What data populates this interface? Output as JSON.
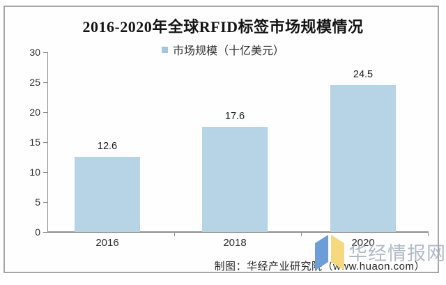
{
  "title": "2016-2020年全球RFID标签市场规模情况",
  "legend": {
    "label": "市场规模（十亿美元）",
    "marker_color": "#a3c7e1"
  },
  "footer_credit": "制图：华经产业研究院（www.huaon.com）",
  "watermark": {
    "text": "华经情报网",
    "logo_left_color": "#6d9dd6",
    "logo_right_color": "#f6d87d"
  },
  "colors": {
    "bar": "#b7d3e6",
    "axis": "#8c8c8c",
    "frame_border": "#a6a6a6"
  },
  "chart_data": {
    "type": "bar",
    "title": "2016-2020年全球RFID标签市场规模情况",
    "series_name": "市场规模（十亿美元）",
    "categories": [
      "2016",
      "2018",
      "2020"
    ],
    "values": [
      12.6,
      17.6,
      24.5
    ],
    "value_labels": [
      "12.6",
      "17.6",
      "24.5"
    ],
    "xlabel": "",
    "ylabel": "",
    "ylim": [
      0,
      30
    ],
    "ytick_step": 5,
    "yticks": [
      0,
      5,
      10,
      15,
      20,
      25,
      30
    ],
    "grid": false,
    "legend_position": "top-center"
  }
}
